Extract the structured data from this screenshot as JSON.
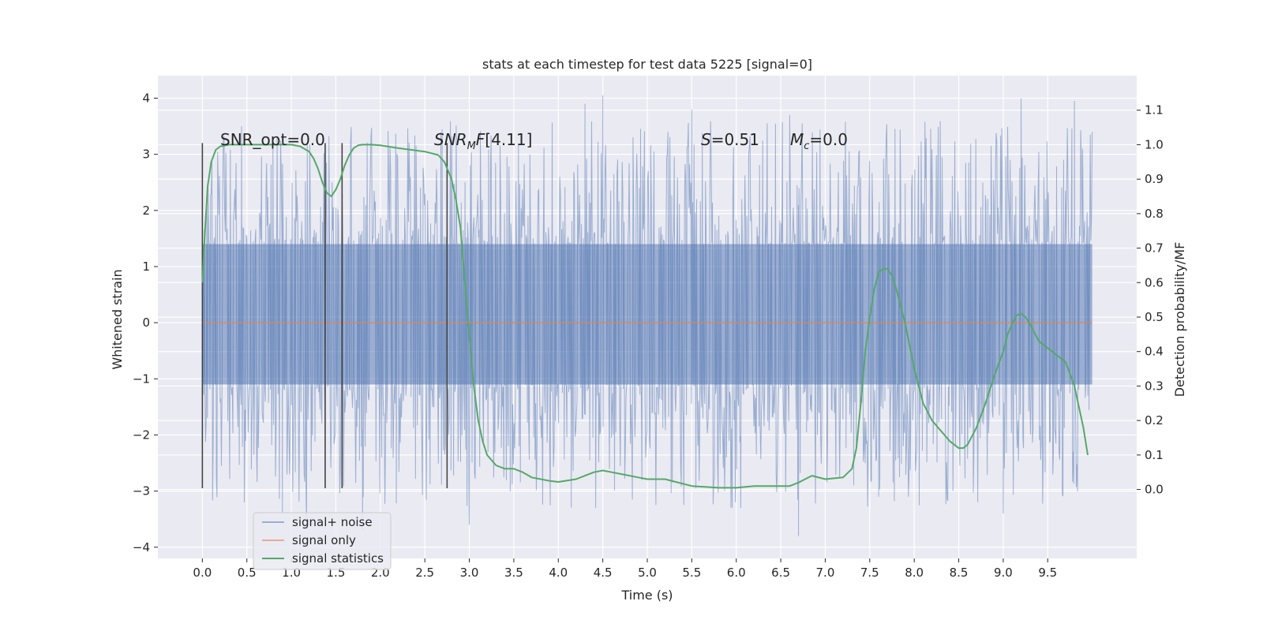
{
  "chart_data": {
    "type": "line",
    "title": "stats at each timestep for test data 5225 [signal=0]",
    "xlabel": "Time (s)",
    "ylabel": "Whitened strain",
    "y2label": "Detection probability/MF",
    "xlim": [
      -0.5,
      10.5
    ],
    "ylim": [
      -4.2,
      4.4
    ],
    "y2lim": [
      -0.2,
      1.2
    ],
    "grid": true,
    "legend_position": "lower-left",
    "x_ticks": [
      "0.0",
      "0.5",
      "1.0",
      "1.5",
      "2.0",
      "2.5",
      "3.0",
      "3.5",
      "4.0",
      "4.5",
      "5.0",
      "5.5",
      "6.0",
      "6.5",
      "7.0",
      "7.5",
      "8.0",
      "8.5",
      "9.0",
      "9.5"
    ],
    "y_ticks": [
      "−4",
      "−3",
      "−2",
      "−1",
      "0",
      "1",
      "2",
      "3",
      "4"
    ],
    "y2_ticks": [
      "0.0",
      "0.1",
      "0.2",
      "0.3",
      "0.4",
      "0.5",
      "0.6",
      "0.7",
      "0.8",
      "0.9",
      "1.0",
      "1.1"
    ],
    "annotations": {
      "snr_opt": "SNR_opt=0.0",
      "snr_mf": "[4.11]",
      "s": "=0.51",
      "mc": "=0.0"
    },
    "series": [
      {
        "name": "signal+ noise",
        "axis": "left",
        "color": "#4c72b0",
        "opacity": 0.5,
        "x_range": [
          0.0,
          10.0
        ],
        "core_envelope": [
          -1.1,
          1.4
        ],
        "peak_envelope": [
          -3.3,
          3.6
        ],
        "extremes": [
          {
            "x": 0.44,
            "y": 3.5
          },
          {
            "x": 0.84,
            "y": 3.3
          },
          {
            "x": 0.9,
            "y": -3.4
          },
          {
            "x": 1.17,
            "y": -3.6
          },
          {
            "x": 1.8,
            "y": -3.7
          },
          {
            "x": 3.0,
            "y": -3.6
          },
          {
            "x": 4.3,
            "y": 3.9
          },
          {
            "x": 4.5,
            "y": 4.05
          },
          {
            "x": 4.42,
            "y": -3.3
          },
          {
            "x": 5.5,
            "y": 3.8
          },
          {
            "x": 6.05,
            "y": -3.3
          },
          {
            "x": 6.6,
            "y": 3.7
          },
          {
            "x": 6.7,
            "y": -3.8
          },
          {
            "x": 7.6,
            "y": -3.1
          },
          {
            "x": 9.0,
            "y": -3.4
          },
          {
            "x": 9.2,
            "y": 4.0
          },
          {
            "x": 9.8,
            "y": 3.95
          }
        ]
      },
      {
        "name": "signal only",
        "axis": "left",
        "color": "#dd8452",
        "x": [
          0.0,
          10.0
        ],
        "y": [
          0.0,
          0.0
        ]
      },
      {
        "name": "signal statistics",
        "axis": "right",
        "color": "#55a868",
        "x": [
          0.0,
          0.03,
          0.06,
          0.1,
          0.15,
          0.2,
          0.3,
          0.5,
          0.8,
          1.0,
          1.1,
          1.2,
          1.25,
          1.3,
          1.35,
          1.4,
          1.45,
          1.5,
          1.55,
          1.6,
          1.65,
          1.7,
          1.75,
          1.8,
          1.9,
          2.0,
          2.2,
          2.5,
          2.65,
          2.72,
          2.8,
          2.85,
          2.9,
          2.95,
          3.0,
          3.05,
          3.1,
          3.15,
          3.2,
          3.3,
          3.4,
          3.5,
          3.6,
          3.7,
          3.9,
          4.0,
          4.2,
          4.3,
          4.4,
          4.5,
          4.6,
          4.7,
          4.9,
          5.0,
          5.2,
          5.5,
          5.8,
          6.0,
          6.2,
          6.5,
          6.6,
          6.7,
          6.85,
          7.0,
          7.2,
          7.3,
          7.35,
          7.4,
          7.45,
          7.5,
          7.55,
          7.6,
          7.65,
          7.7,
          7.75,
          7.8,
          7.9,
          8.0,
          8.1,
          8.2,
          8.3,
          8.4,
          8.5,
          8.55,
          8.6,
          8.7,
          8.8,
          8.9,
          9.0,
          9.05,
          9.1,
          9.15,
          9.2,
          9.25,
          9.3,
          9.35,
          9.4,
          9.5,
          9.55,
          9.6,
          9.7,
          9.8,
          9.9,
          9.95
        ],
        "y": [
          0.6,
          0.75,
          0.88,
          0.95,
          0.985,
          0.995,
          1.0,
          1.0,
          1.0,
          1.0,
          0.995,
          0.98,
          0.96,
          0.93,
          0.89,
          0.86,
          0.85,
          0.87,
          0.9,
          0.94,
          0.97,
          0.99,
          0.998,
          1.0,
          1.0,
          0.998,
          0.99,
          0.98,
          0.97,
          0.95,
          0.9,
          0.84,
          0.76,
          0.6,
          0.45,
          0.3,
          0.2,
          0.14,
          0.1,
          0.07,
          0.06,
          0.06,
          0.05,
          0.035,
          0.025,
          0.022,
          0.03,
          0.04,
          0.05,
          0.055,
          0.05,
          0.045,
          0.035,
          0.03,
          0.03,
          0.01,
          0.005,
          0.005,
          0.01,
          0.01,
          0.01,
          0.02,
          0.04,
          0.03,
          0.035,
          0.06,
          0.12,
          0.25,
          0.4,
          0.5,
          0.58,
          0.63,
          0.64,
          0.64,
          0.62,
          0.58,
          0.48,
          0.35,
          0.25,
          0.2,
          0.17,
          0.14,
          0.12,
          0.12,
          0.13,
          0.18,
          0.25,
          0.33,
          0.4,
          0.45,
          0.48,
          0.505,
          0.51,
          0.5,
          0.48,
          0.455,
          0.43,
          0.41,
          0.4,
          0.39,
          0.37,
          0.3,
          0.18,
          0.1
        ]
      }
    ],
    "markers": {
      "axis": "left",
      "color": "#444444",
      "x": [
        0.0,
        1.38,
        1.57,
        2.75
      ],
      "y_top": 3.2,
      "y_bottom": -2.95
    }
  }
}
